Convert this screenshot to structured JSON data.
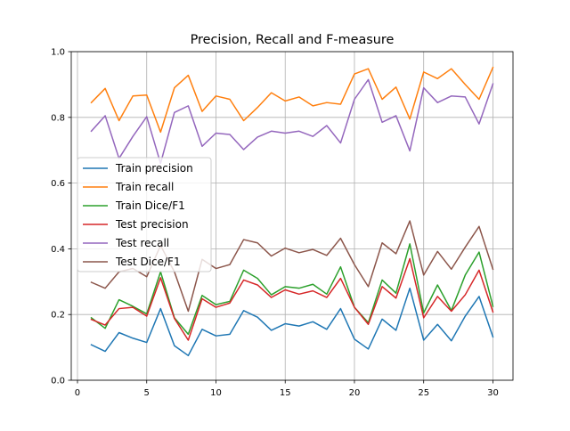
{
  "chart_data": {
    "type": "line",
    "title": "Precision, Recall and F-measure",
    "xlabel": "",
    "ylabel": "",
    "xlim": [
      -0.45,
      31.45
    ],
    "ylim": [
      0.0,
      1.0
    ],
    "x_ticks": [
      0,
      5,
      10,
      15,
      20,
      25,
      30
    ],
    "x_tick_labels": [
      "0",
      "5",
      "10",
      "15",
      "20",
      "25",
      "30"
    ],
    "y_ticks": [
      0.0,
      0.2,
      0.4,
      0.6,
      0.8,
      1.0
    ],
    "y_tick_labels": [
      "0.0",
      "0.2",
      "0.4",
      "0.6",
      "0.8",
      "1.0"
    ],
    "grid": true,
    "legend_position": "center-left",
    "x": [
      1,
      2,
      3,
      4,
      5,
      6,
      7,
      8,
      9,
      10,
      11,
      12,
      13,
      14,
      15,
      16,
      17,
      18,
      19,
      20,
      21,
      22,
      23,
      24,
      25,
      26,
      27,
      28,
      29,
      30
    ],
    "series": [
      {
        "name": "Train precision",
        "color": "#1f77b4",
        "values": [
          0.108,
          0.088,
          0.145,
          0.128,
          0.115,
          0.218,
          0.105,
          0.075,
          0.155,
          0.135,
          0.14,
          0.212,
          0.192,
          0.152,
          0.172,
          0.165,
          0.178,
          0.155,
          0.218,
          0.125,
          0.095,
          0.186,
          0.152,
          0.28,
          0.122,
          0.17,
          0.12,
          0.195,
          0.255,
          0.132
        ]
      },
      {
        "name": "Train recall",
        "color": "#ff7f0e",
        "values": [
          0.845,
          0.888,
          0.79,
          0.865,
          0.868,
          0.755,
          0.89,
          0.928,
          0.818,
          0.865,
          0.855,
          0.79,
          0.83,
          0.875,
          0.85,
          0.862,
          0.835,
          0.845,
          0.84,
          0.932,
          0.948,
          0.855,
          0.892,
          0.795,
          0.938,
          0.918,
          0.948,
          0.9,
          0.855,
          0.952
        ]
      },
      {
        "name": "Train Dice/F1",
        "color": "#2ca02c",
        "values": [
          0.19,
          0.158,
          0.245,
          0.225,
          0.202,
          0.33,
          0.19,
          0.14,
          0.258,
          0.23,
          0.24,
          0.335,
          0.31,
          0.26,
          0.285,
          0.28,
          0.292,
          0.262,
          0.345,
          0.222,
          0.175,
          0.305,
          0.265,
          0.415,
          0.205,
          0.29,
          0.212,
          0.32,
          0.39,
          0.225
        ]
      },
      {
        "name": "Test precision",
        "color": "#d62728",
        "values": [
          0.185,
          0.168,
          0.218,
          0.222,
          0.195,
          0.312,
          0.188,
          0.122,
          0.248,
          0.222,
          0.235,
          0.305,
          0.29,
          0.252,
          0.275,
          0.262,
          0.272,
          0.252,
          0.31,
          0.222,
          0.17,
          0.285,
          0.25,
          0.37,
          0.19,
          0.255,
          0.21,
          0.26,
          0.335,
          0.208
        ]
      },
      {
        "name": "Test recall",
        "color": "#9467bd",
        "values": [
          0.758,
          0.805,
          0.675,
          0.742,
          0.802,
          0.66,
          0.815,
          0.835,
          0.712,
          0.752,
          0.748,
          0.702,
          0.74,
          0.758,
          0.752,
          0.758,
          0.742,
          0.775,
          0.722,
          0.855,
          0.915,
          0.785,
          0.805,
          0.698,
          0.89,
          0.845,
          0.865,
          0.862,
          0.78,
          0.902
        ]
      },
      {
        "name": "Test Dice/F1",
        "color": "#8c564b",
        "values": [
          0.298,
          0.28,
          0.33,
          0.34,
          0.315,
          0.41,
          0.33,
          0.21,
          0.368,
          0.34,
          0.352,
          0.428,
          0.418,
          0.378,
          0.402,
          0.388,
          0.398,
          0.38,
          0.432,
          0.352,
          0.285,
          0.418,
          0.385,
          0.485,
          0.32,
          0.392,
          0.338,
          0.405,
          0.468,
          0.338
        ]
      }
    ]
  }
}
